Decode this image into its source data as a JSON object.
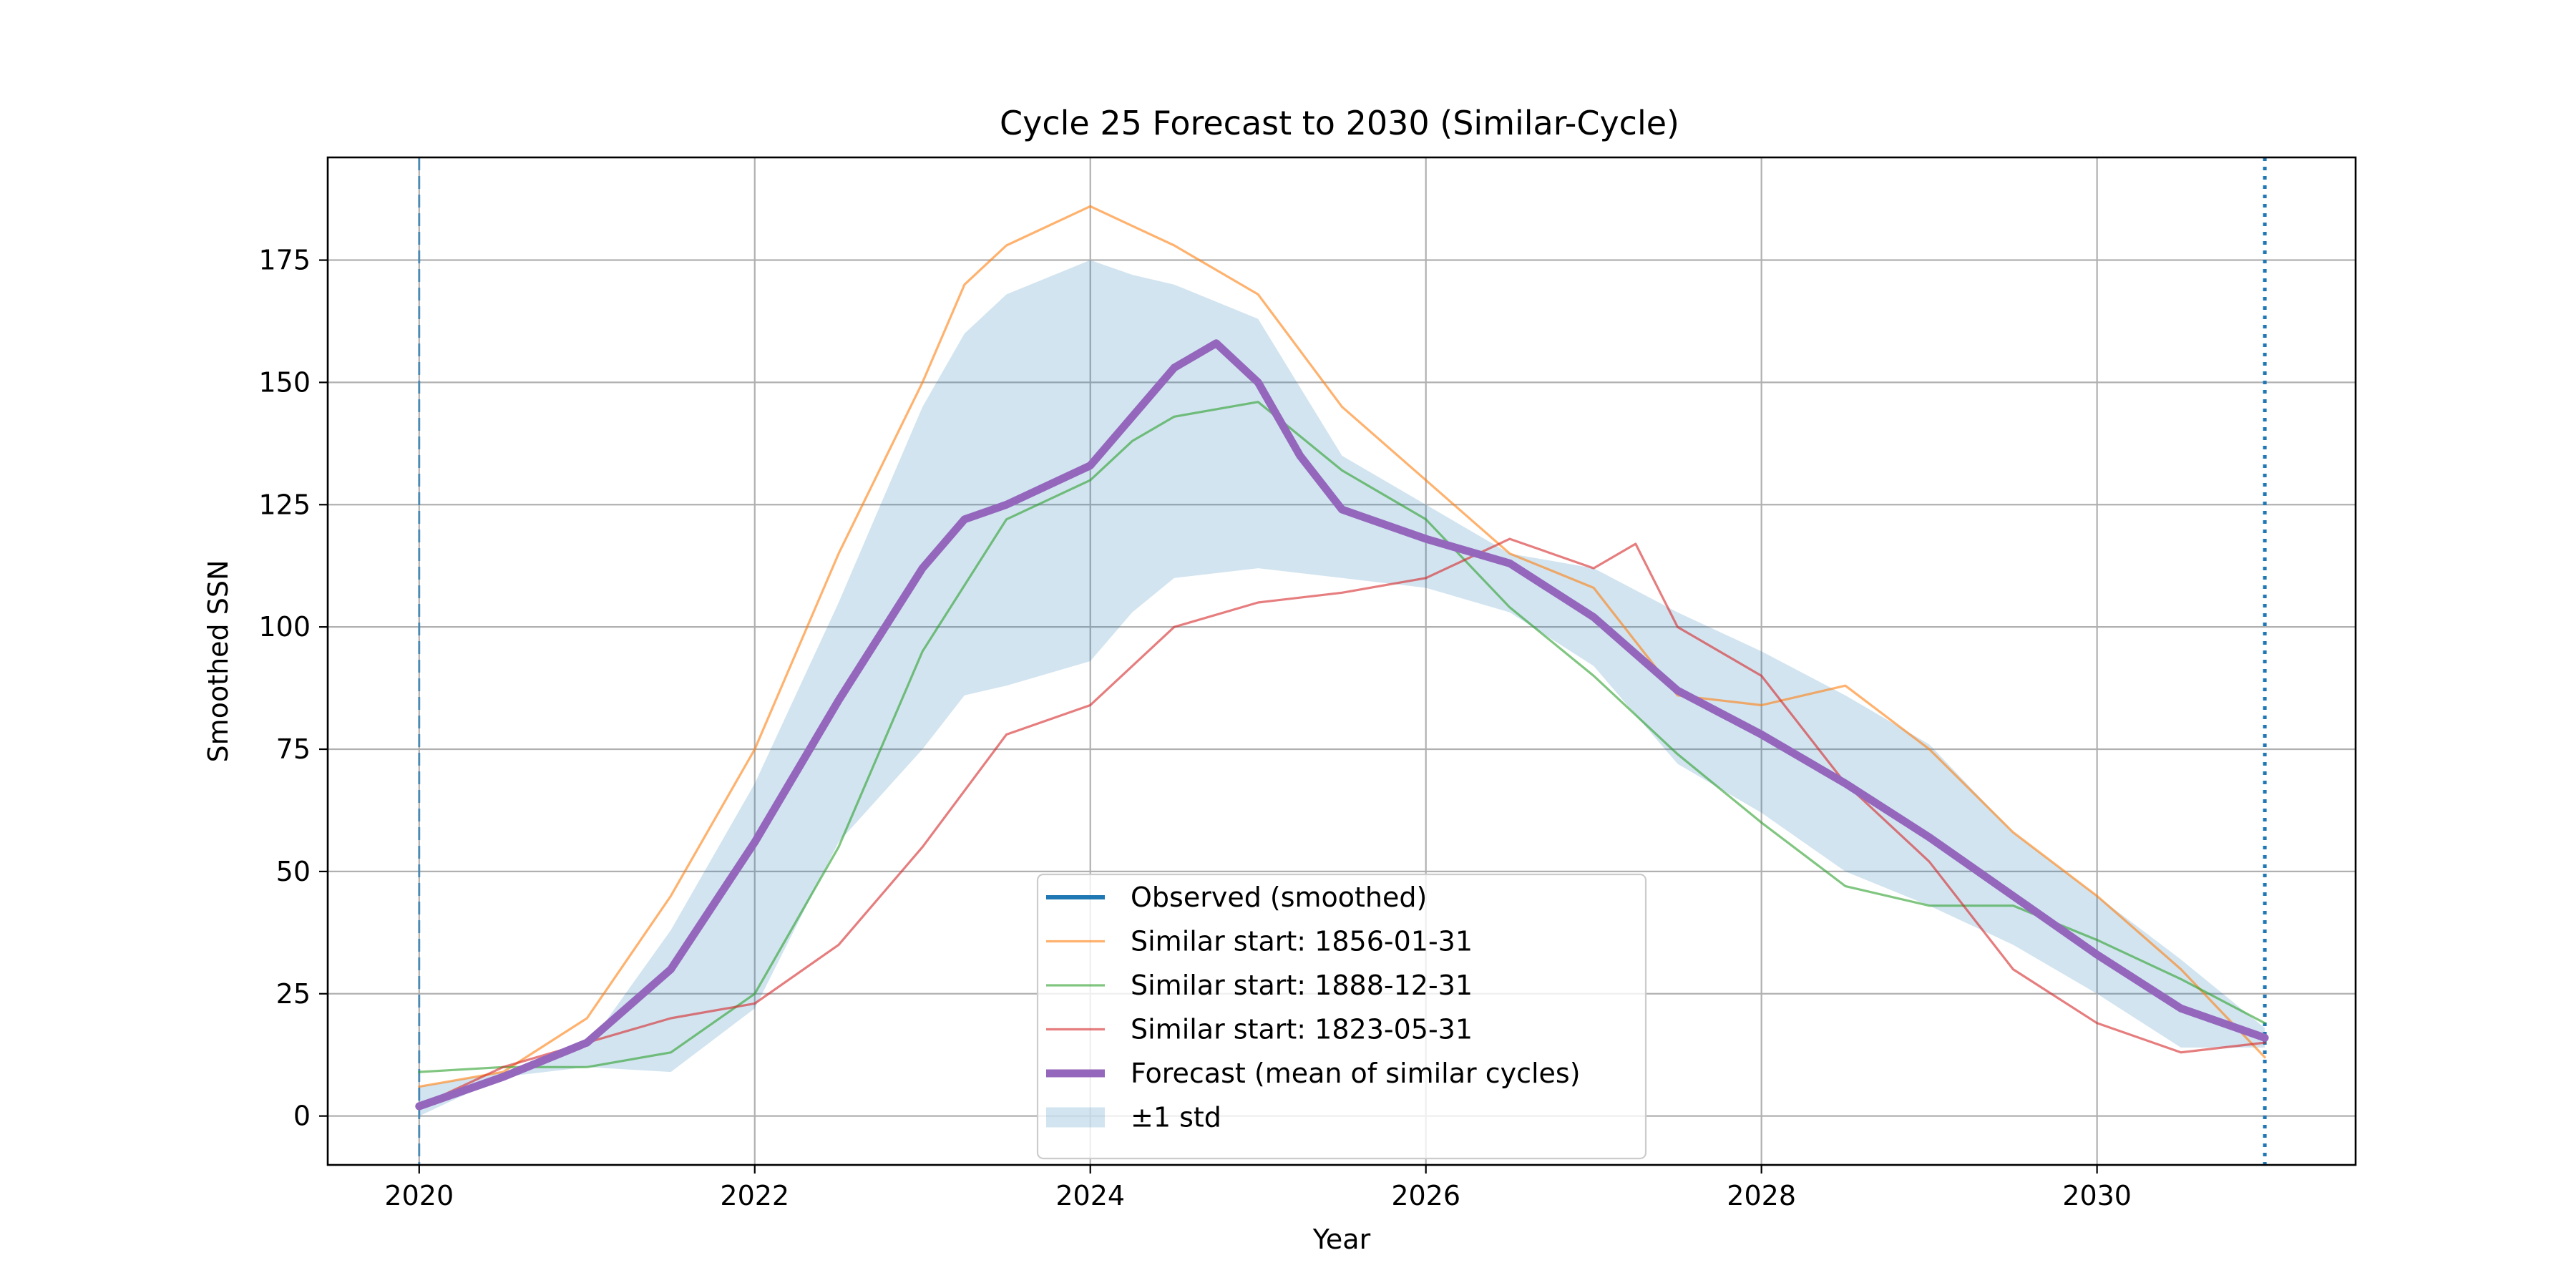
{
  "chart_data": {
    "type": "line",
    "title": "Cycle 25 Forecast to 2030 (Similar-Cycle)",
    "xlabel": "Year",
    "ylabel": "Smoothed SSN",
    "xlim": [
      "2019-06-15",
      "2031-07-16"
    ],
    "ylim": [
      -10,
      196
    ],
    "x_ticks": [
      2020,
      2022,
      2024,
      2026,
      2028,
      2030
    ],
    "y_ticks": [
      0,
      25,
      50,
      75,
      100,
      125,
      150,
      175
    ],
    "grid": true,
    "legend_position": "lower-center",
    "vlines": [
      {
        "x": "2020-01-01",
        "style": "dashed",
        "color": "#1f77b4"
      },
      {
        "x": "2031-01-01",
        "style": "dotted",
        "color": "#1f77b4"
      }
    ],
    "legend": [
      {
        "label": "Observed (smoothed)",
        "kind": "line",
        "color": "#1f77b4"
      },
      {
        "label": "Similar start: 1856-01-31",
        "kind": "line",
        "color": "#ff7f0e"
      },
      {
        "label": "Similar start: 1888-12-31",
        "kind": "line",
        "color": "#2ca02c"
      },
      {
        "label": "Similar start: 1823-05-31",
        "kind": "line",
        "color": "#d62728"
      },
      {
        "label": "Forecast (mean of similar cycles)",
        "kind": "thick-line",
        "color": "#9467bd"
      },
      {
        "label": "±1 std",
        "kind": "band",
        "color": "#1f77b4"
      }
    ],
    "series": [
      {
        "name": "Similar start: 1856-01-31",
        "color": "#ff7f0e",
        "x": [
          "2020-01-01",
          "2020-07-01",
          "2021-01-01",
          "2021-07-01",
          "2022-01-01",
          "2022-07-01",
          "2023-01-01",
          "2023-04-01",
          "2023-07-01",
          "2024-01-01",
          "2024-04-01",
          "2024-07-01",
          "2025-01-01",
          "2025-07-01",
          "2026-01-01",
          "2026-07-01",
          "2027-01-01",
          "2027-07-01",
          "2028-01-01",
          "2028-07-01",
          "2029-01-01",
          "2029-07-01",
          "2030-01-01",
          "2030-07-01",
          "2031-01-01"
        ],
        "values": [
          6,
          9,
          20,
          45,
          75,
          115,
          150,
          170,
          178,
          186,
          182,
          178,
          168,
          145,
          130,
          115,
          108,
          86,
          84,
          88,
          75,
          58,
          45,
          30,
          12
        ]
      },
      {
        "name": "Similar start: 1888-12-31",
        "color": "#2ca02c",
        "x": [
          "2020-01-01",
          "2020-07-01",
          "2021-01-01",
          "2021-07-01",
          "2022-01-01",
          "2022-07-01",
          "2023-01-01",
          "2023-07-01",
          "2024-01-01",
          "2024-04-01",
          "2024-07-01",
          "2025-01-01",
          "2025-07-01",
          "2026-01-01",
          "2026-07-01",
          "2027-01-01",
          "2027-07-01",
          "2028-01-01",
          "2028-07-01",
          "2029-01-01",
          "2029-07-01",
          "2030-01-01",
          "2030-07-01",
          "2031-01-01"
        ],
        "values": [
          9,
          10,
          10,
          13,
          25,
          55,
          95,
          122,
          130,
          138,
          143,
          146,
          132,
          122,
          104,
          90,
          74,
          60,
          47,
          43,
          43,
          36,
          28,
          19
        ]
      },
      {
        "name": "Similar start: 1823-05-31",
        "color": "#d62728",
        "x": [
          "2020-01-01",
          "2020-07-01",
          "2021-01-01",
          "2021-07-01",
          "2022-01-01",
          "2022-07-01",
          "2023-01-01",
          "2023-07-01",
          "2024-01-01",
          "2024-07-01",
          "2025-01-01",
          "2025-07-01",
          "2026-01-01",
          "2026-07-01",
          "2027-01-01",
          "2027-04-01",
          "2027-07-01",
          "2028-01-01",
          "2028-07-01",
          "2029-01-01",
          "2029-07-01",
          "2030-01-01",
          "2030-07-01",
          "2031-01-01"
        ],
        "values": [
          2,
          10,
          15,
          20,
          23,
          35,
          55,
          78,
          84,
          100,
          105,
          107,
          110,
          118,
          112,
          117,
          100,
          90,
          68,
          52,
          30,
          19,
          13,
          15
        ]
      },
      {
        "name": "Forecast (mean of similar cycles)",
        "color": "#9467bd",
        "x": [
          "2020-01-01",
          "2020-07-01",
          "2021-01-01",
          "2021-07-01",
          "2022-01-01",
          "2022-07-01",
          "2023-01-01",
          "2023-04-01",
          "2023-07-01",
          "2024-01-01",
          "2024-04-01",
          "2024-07-01",
          "2024-10-01",
          "2025-01-01",
          "2025-04-01",
          "2025-07-01",
          "2026-01-01",
          "2026-07-01",
          "2027-01-01",
          "2027-07-01",
          "2028-01-01",
          "2028-07-01",
          "2029-01-01",
          "2029-07-01",
          "2030-01-01",
          "2030-07-01",
          "2031-01-01"
        ],
        "values": [
          2,
          8,
          15,
          30,
          56,
          85,
          112,
          122,
          125,
          133,
          143,
          153,
          158,
          150,
          135,
          124,
          118,
          113,
          102,
          87,
          78,
          68,
          57,
          45,
          33,
          22,
          16
        ]
      }
    ],
    "band": {
      "name": "±1 std",
      "color": "#1f77b4",
      "x": [
        "2020-01-01",
        "2020-07-01",
        "2021-01-01",
        "2021-07-01",
        "2022-01-01",
        "2022-07-01",
        "2023-01-01",
        "2023-04-01",
        "2023-07-01",
        "2024-01-01",
        "2024-04-01",
        "2024-07-01",
        "2025-01-01",
        "2025-07-01",
        "2026-01-01",
        "2026-07-01",
        "2027-01-01",
        "2027-07-01",
        "2028-01-01",
        "2028-07-01",
        "2029-01-01",
        "2029-07-01",
        "2030-01-01",
        "2030-07-01",
        "2031-01-01"
      ],
      "upper": [
        6,
        9,
        14,
        38,
        68,
        105,
        145,
        160,
        168,
        175,
        172,
        170,
        163,
        135,
        125,
        115,
        112,
        103,
        95,
        86,
        76,
        58,
        45,
        32,
        18
      ],
      "lower": [
        0,
        8,
        10,
        9,
        22,
        56,
        75,
        86,
        88,
        93,
        103,
        110,
        112,
        110,
        108,
        103,
        92,
        72,
        62,
        50,
        43,
        35,
        25,
        14,
        14
      ]
    }
  }
}
